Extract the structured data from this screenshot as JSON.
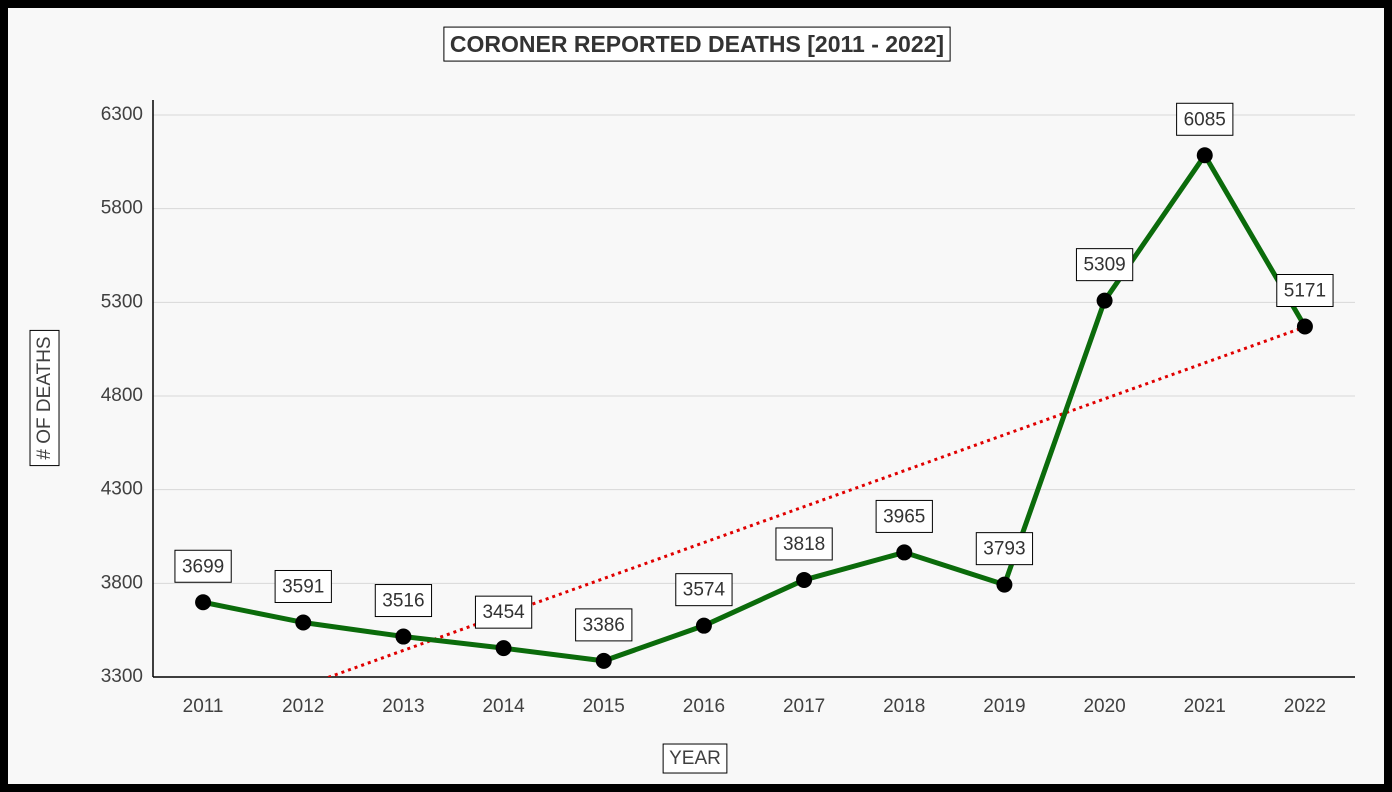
{
  "chart_data": {
    "type": "line",
    "title": "CORONER REPORTED DEATHS [2011 - 2022]",
    "x_label": "YEAR",
    "y_label": "# OF DEATHS",
    "categories": [
      "2011",
      "2012",
      "2013",
      "2014",
      "2015",
      "2016",
      "2017",
      "2018",
      "2019",
      "2020",
      "2021",
      "2022"
    ],
    "series": [
      {
        "name": "Deaths",
        "color": "#0b6b0b",
        "values": [
          3699,
          3591,
          3516,
          3454,
          3386,
          3574,
          3818,
          3965,
          3793,
          5309,
          6085,
          5171
        ]
      }
    ],
    "ylim": [
      3300,
      6300
    ],
    "yticks": [
      3300,
      3800,
      4300,
      4800,
      5300,
      5800,
      6300
    ],
    "grid": true,
    "trendline": true,
    "trendline_color": "#e00000"
  }
}
